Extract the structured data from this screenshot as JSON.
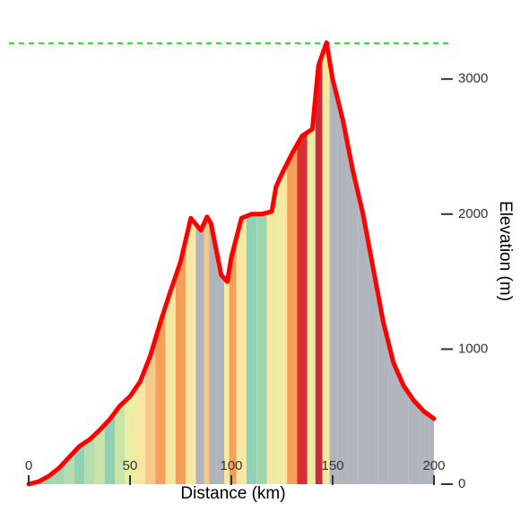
{
  "chart_data": {
    "type": "area",
    "x_label": "Distance (km)",
    "y_label": "Elevation (m)",
    "x": [
      0,
      5,
      10,
      15,
      20,
      25,
      30,
      35,
      40,
      45,
      50,
      55,
      60,
      65,
      70,
      75,
      80,
      85,
      88,
      90,
      95,
      98,
      100,
      105,
      110,
      115,
      120,
      122,
      125,
      130,
      135,
      140,
      143,
      147,
      150,
      155,
      160,
      165,
      170,
      175,
      180,
      185,
      190,
      195,
      200
    ],
    "values": [
      0,
      20,
      60,
      120,
      200,
      280,
      330,
      400,
      480,
      580,
      650,
      760,
      950,
      1200,
      1430,
      1650,
      1970,
      1880,
      1980,
      1930,
      1550,
      1500,
      1680,
      1970,
      2000,
      2000,
      2020,
      2200,
      2300,
      2450,
      2580,
      2630,
      3100,
      3270,
      3000,
      2700,
      2320,
      2000,
      1600,
      1200,
      900,
      730,
      620,
      540,
      485
    ],
    "segment_colors": [
      "#8fd1b5",
      "#8fd1b5",
      "#9fd6b0",
      "#9fd6b0",
      "#b5ddb0",
      "#8fd1b5",
      "#b5ddb0",
      "#c9e4a6",
      "#8fd1b5",
      "#c9e4a6",
      "#e9eea2",
      "#f6e7a1",
      "#f6c98a",
      "#f4a05a",
      "#f6e7a1",
      "#f4a05a",
      "#f6e7a1",
      "#b0b5bd",
      "#f6c98a",
      "#b0b5bd",
      "#b0b5bd",
      "#f6e7a1",
      "#f4a05a",
      "#f6e7a1",
      "#8fd1b5",
      "#9fd6b0",
      "#f6e7a1",
      "#e9eea2",
      "#f6e7a1",
      "#f4a05a",
      "#d63030",
      "#e9eea2",
      "#c2303f",
      "#f6e7a1",
      "#b0b5bd",
      "#b0b5bd",
      "#b0b5bd",
      "#b0b5bd",
      "#b0b5bd",
      "#b0b5bd",
      "#b0b5bd",
      "#b0b5bd",
      "#b0b5bd",
      "#b0b5bd",
      "#b0b5bd"
    ],
    "line_color": "#ff0000",
    "reference_line": {
      "value": 3265,
      "color": "#22dd22"
    },
    "xlim": [
      0,
      200
    ],
    "ylim": [
      0,
      3300
    ],
    "xticks": [
      0,
      50,
      100,
      150,
      200
    ],
    "yticks": [
      0,
      1000,
      2000,
      3000
    ]
  }
}
